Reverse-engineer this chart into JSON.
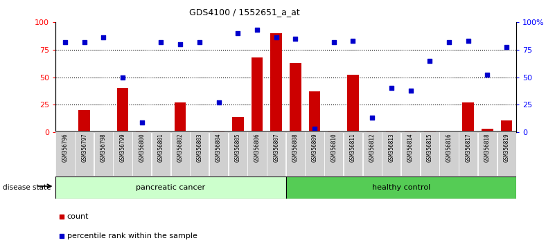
{
  "title": "GDS4100 / 1552651_a_at",
  "samples": [
    "GSM356796",
    "GSM356797",
    "GSM356798",
    "GSM356799",
    "GSM356800",
    "GSM356801",
    "GSM356802",
    "GSM356803",
    "GSM356804",
    "GSM356805",
    "GSM356806",
    "GSM356807",
    "GSM356808",
    "GSM356809",
    "GSM356810",
    "GSM356811",
    "GSM356812",
    "GSM356813",
    "GSM356814",
    "GSM356815",
    "GSM356816",
    "GSM356817",
    "GSM356818",
    "GSM356819"
  ],
  "counts": [
    0,
    20,
    0,
    40,
    1,
    0,
    27,
    0,
    1,
    14,
    68,
    90,
    63,
    37,
    1,
    52,
    1,
    1,
    1,
    1,
    0,
    27,
    3,
    11
  ],
  "percentiles": [
    82,
    82,
    86,
    50,
    9,
    82,
    80,
    82,
    27,
    90,
    93,
    86,
    85,
    3,
    82,
    83,
    13,
    40,
    38,
    65,
    82,
    83,
    52,
    77
  ],
  "disease_groups": [
    {
      "label": "pancreatic cancer",
      "start": 0,
      "end": 12,
      "color": "#ccffcc"
    },
    {
      "label": "healthy control",
      "start": 12,
      "end": 24,
      "color": "#55cc55"
    }
  ],
  "bar_color": "#cc0000",
  "dot_color": "#0000cc",
  "ylim_left": [
    0,
    100
  ],
  "ylim_right": [
    0,
    100
  ],
  "yticks_left": [
    0,
    25,
    50,
    75,
    100
  ],
  "yticks_right": [
    0,
    25,
    50,
    75,
    100
  ],
  "ytick_labels_right": [
    "0",
    "25",
    "50",
    "75",
    "100%"
  ],
  "grid_lines": [
    25,
    50,
    75
  ],
  "legend_count_label": "count",
  "legend_pct_label": "percentile rank within the sample",
  "disease_state_label": "disease state"
}
